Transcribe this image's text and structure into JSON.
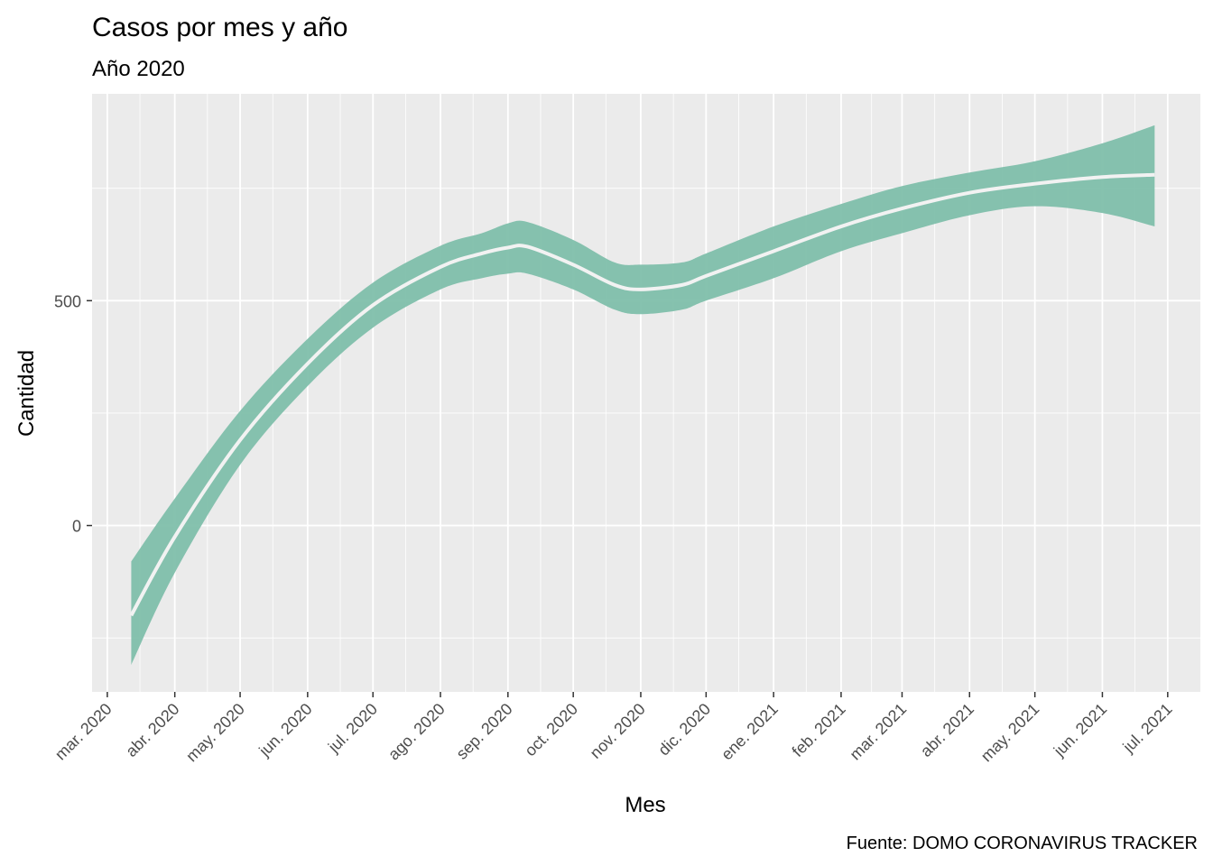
{
  "chart_data": {
    "type": "area",
    "title": "Casos por mes y año",
    "subtitle": "Año 2020",
    "caption": "Fuente: DOMO CORONAVIRUS TRACKER",
    "xlabel": "Mes",
    "ylabel": "Cantidad",
    "x_ticks": [
      "mar. 2020",
      "abr. 2020",
      "may. 2020",
      "jun. 2020",
      "jul. 2020",
      "ago. 2020",
      "sep. 2020",
      "oct. 2020",
      "nov. 2020",
      "dic. 2020",
      "ene. 2021",
      "feb. 2021",
      "mar. 2021",
      "abr. 2021",
      "may. 2021",
      "jun. 2021",
      "jul. 2021"
    ],
    "y_ticks": [
      0,
      500
    ],
    "ylim": [
      -370,
      960
    ],
    "xlim": [
      "2020-02-23",
      "2021-07-16"
    ],
    "grid": true,
    "colors": {
      "panel": "#ebebeb",
      "band": "#7fbfab",
      "line": "#f2f2f2",
      "grid": "#ffffff"
    },
    "series": [
      {
        "x": [
          "2020-03-12",
          "2020-04-01",
          "2020-05-01",
          "2020-06-01",
          "2020-07-01",
          "2020-08-01",
          "2020-08-20",
          "2020-09-01",
          "2020-09-10",
          "2020-10-01",
          "2020-10-20",
          "2020-11-01",
          "2020-11-20",
          "2020-12-01",
          "2021-01-01",
          "2021-02-01",
          "2021-03-01",
          "2021-04-01",
          "2021-05-01",
          "2021-06-01",
          "2021-06-25"
        ],
        "y": [
          -200,
          -25,
          190,
          360,
          490,
          575,
          605,
          618,
          620,
          580,
          535,
          525,
          535,
          555,
          610,
          665,
          705,
          740,
          760,
          775,
          780
        ],
        "ymin": [
          -310,
          -105,
          135,
          310,
          440,
          525,
          550,
          560,
          560,
          525,
          480,
          470,
          480,
          500,
          550,
          610,
          650,
          690,
          710,
          695,
          665
        ],
        "ymax": [
          -80,
          60,
          255,
          415,
          540,
          622,
          650,
          672,
          675,
          635,
          585,
          580,
          585,
          605,
          665,
          715,
          755,
          785,
          810,
          850,
          890
        ]
      }
    ]
  }
}
